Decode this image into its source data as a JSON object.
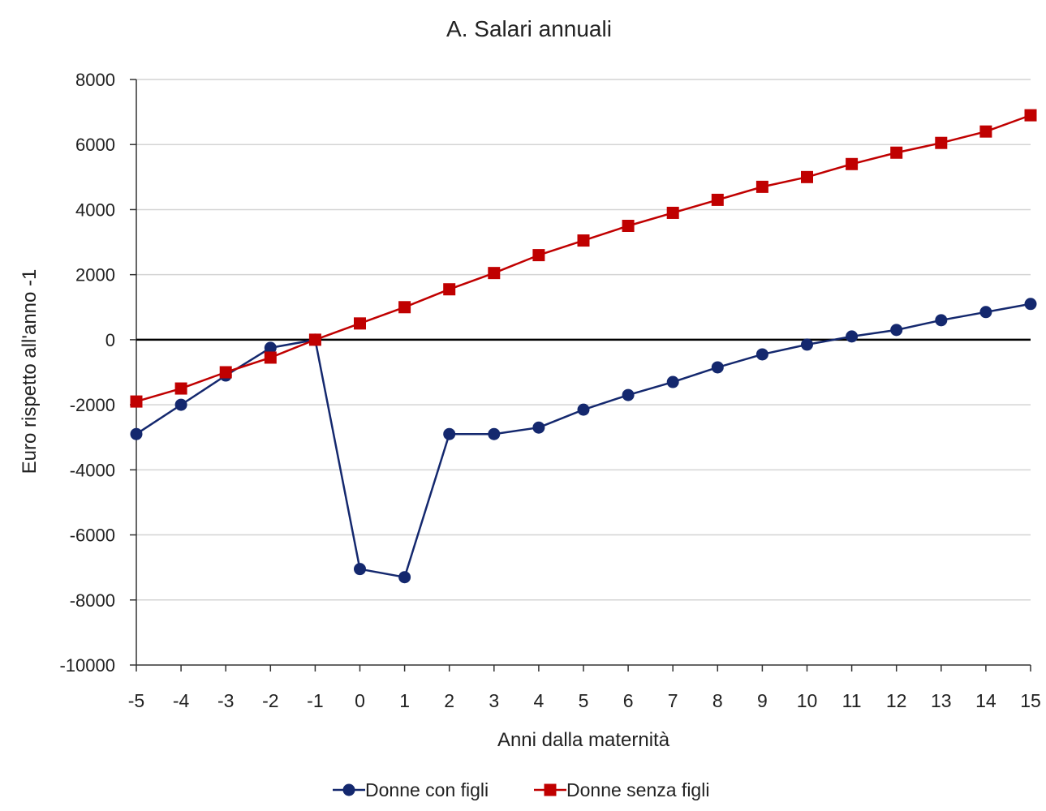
{
  "chart_data": {
    "type": "line",
    "title": "A. Salari annuali",
    "xlabel": "Anni dalla maternità",
    "ylabel": "Euro rispetto all'anno -1",
    "x": [
      -5,
      -4,
      -3,
      -2,
      -1,
      0,
      1,
      2,
      3,
      4,
      5,
      6,
      7,
      8,
      9,
      10,
      11,
      12,
      13,
      14,
      15
    ],
    "ylim": [
      -10000,
      8000
    ],
    "yticks": [
      8000,
      6000,
      4000,
      2000,
      0,
      -2000,
      -4000,
      -6000,
      -8000,
      -10000
    ],
    "grid": true,
    "legend_position": "bottom",
    "series": [
      {
        "name": "Donne con figli",
        "color": "#14286e",
        "marker": "circle",
        "values": [
          -2900,
          -2000,
          -1100,
          -250,
          0,
          -7050,
          -7300,
          -2900,
          -2900,
          -2700,
          -2150,
          -1700,
          -1300,
          -850,
          -450,
          -150,
          100,
          300,
          600,
          850,
          1100
        ]
      },
      {
        "name": "Donne senza figli",
        "color": "#c00000",
        "marker": "square",
        "values": [
          -1900,
          -1500,
          -1000,
          -550,
          0,
          500,
          1000,
          1550,
          2050,
          2600,
          3050,
          3500,
          3900,
          4300,
          4700,
          5000,
          5400,
          5750,
          6050,
          6400,
          6900
        ]
      }
    ]
  }
}
